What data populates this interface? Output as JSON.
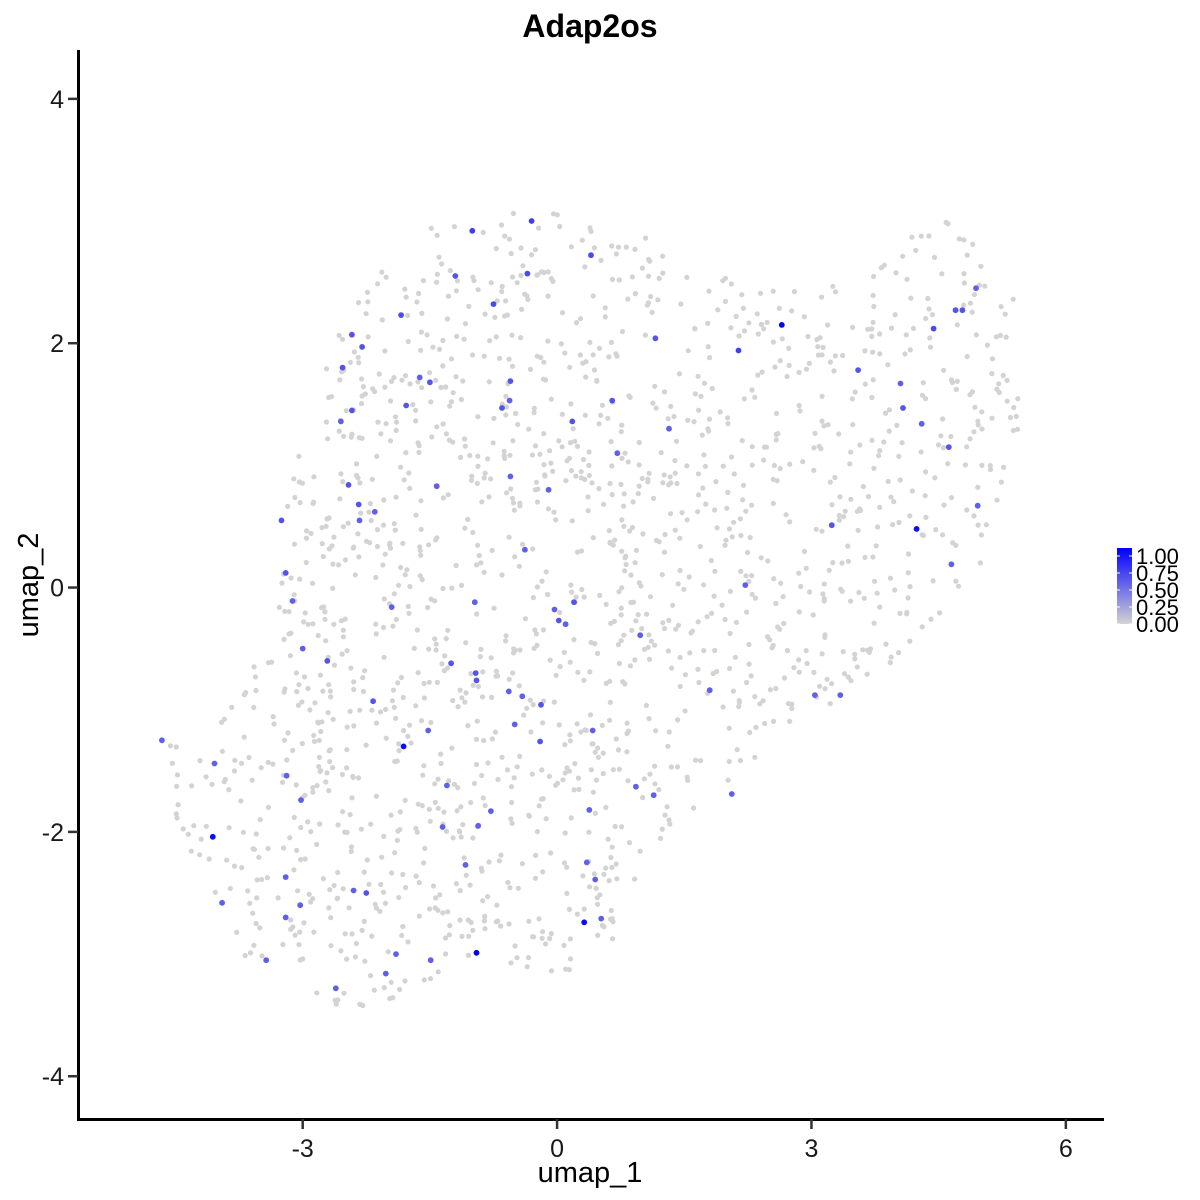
{
  "chart_data": {
    "type": "scatter",
    "title": "Adap2os",
    "xlabel": "umap_1",
    "ylabel": "umap_2",
    "xlim": [
      -5.65,
      6.45
    ],
    "ylim": [
      -4.35,
      4.4
    ],
    "x_ticks": [
      -3,
      0,
      3,
      6
    ],
    "x_tick_labels": [
      "-3",
      "0",
      "3",
      "6"
    ],
    "y_ticks": [
      -4,
      -2,
      0,
      2,
      4
    ],
    "y_tick_labels": [
      "-4",
      "-2",
      "0",
      "2",
      "4"
    ],
    "grid": false,
    "legend": {
      "position": "right",
      "type": "colorbar",
      "labels": [
        "1.00",
        "0.75",
        "0.50",
        "0.25",
        "0.00"
      ],
      "low_color": "#d3d3d3",
      "high_color": "#0000ff"
    },
    "background_cells_color": "#d3d3d3",
    "background_cells_expression": 0,
    "expressing_cells": [
      {
        "x": -1.0,
        "y": 2.92,
        "v": 0.7
      },
      {
        "x": -0.3,
        "y": 3.0,
        "v": 0.7
      },
      {
        "x": 0.4,
        "y": 2.72,
        "v": 0.65
      },
      {
        "x": -1.2,
        "y": 2.55,
        "v": 0.6
      },
      {
        "x": -0.35,
        "y": 2.57,
        "v": 0.65
      },
      {
        "x": -1.84,
        "y": 2.23,
        "v": 0.65
      },
      {
        "x": -0.75,
        "y": 2.32,
        "v": 0.65
      },
      {
        "x": 1.16,
        "y": 2.04,
        "v": 0.6
      },
      {
        "x": 2.65,
        "y": 2.15,
        "v": 1.0
      },
      {
        "x": 2.14,
        "y": 1.94,
        "v": 0.7
      },
      {
        "x": 4.44,
        "y": 2.12,
        "v": 0.65
      },
      {
        "x": 4.7,
        "y": 2.27,
        "v": 0.6
      },
      {
        "x": 4.78,
        "y": 2.27,
        "v": 0.6
      },
      {
        "x": 4.94,
        "y": 2.45,
        "v": 0.55
      },
      {
        "x": -2.42,
        "y": 2.07,
        "v": 0.6
      },
      {
        "x": -2.3,
        "y": 1.97,
        "v": 0.6
      },
      {
        "x": -2.53,
        "y": 1.8,
        "v": 0.6
      },
      {
        "x": -1.62,
        "y": 1.72,
        "v": 0.55
      },
      {
        "x": -1.5,
        "y": 1.68,
        "v": 0.6
      },
      {
        "x": -0.55,
        "y": 1.69,
        "v": 0.6
      },
      {
        "x": -1.78,
        "y": 1.49,
        "v": 0.6
      },
      {
        "x": -0.56,
        "y": 1.53,
        "v": 0.55
      },
      {
        "x": -0.65,
        "y": 1.47,
        "v": 0.6
      },
      {
        "x": 0.65,
        "y": 1.53,
        "v": 0.6
      },
      {
        "x": 0.18,
        "y": 1.36,
        "v": 0.6
      },
      {
        "x": 1.32,
        "y": 1.3,
        "v": 0.55
      },
      {
        "x": 3.55,
        "y": 1.78,
        "v": 0.6
      },
      {
        "x": 4.05,
        "y": 1.67,
        "v": 0.55
      },
      {
        "x": 4.08,
        "y": 1.47,
        "v": 0.6
      },
      {
        "x": 4.3,
        "y": 1.34,
        "v": 0.55
      },
      {
        "x": 4.62,
        "y": 1.15,
        "v": 0.6
      },
      {
        "x": -2.42,
        "y": 1.45,
        "v": 0.6
      },
      {
        "x": -2.55,
        "y": 1.36,
        "v": 0.55
      },
      {
        "x": 0.71,
        "y": 1.1,
        "v": 0.55
      },
      {
        "x": -0.55,
        "y": 0.91,
        "v": 0.55
      },
      {
        "x": -1.42,
        "y": 0.83,
        "v": 0.55
      },
      {
        "x": -0.1,
        "y": 0.8,
        "v": 0.55
      },
      {
        "x": -2.46,
        "y": 0.84,
        "v": 0.6
      },
      {
        "x": -2.34,
        "y": 0.68,
        "v": 0.6
      },
      {
        "x": -2.15,
        "y": 0.62,
        "v": 0.55
      },
      {
        "x": -2.33,
        "y": 0.55,
        "v": 0.55
      },
      {
        "x": -3.25,
        "y": 0.55,
        "v": 0.6
      },
      {
        "x": 3.24,
        "y": 0.51,
        "v": 0.6
      },
      {
        "x": 4.24,
        "y": 0.48,
        "v": 0.95
      },
      {
        "x": 4.96,
        "y": 0.67,
        "v": 0.55
      },
      {
        "x": 4.65,
        "y": 0.19,
        "v": 0.55
      },
      {
        "x": -0.38,
        "y": 0.31,
        "v": 0.55
      },
      {
        "x": -3.2,
        "y": 0.12,
        "v": 0.6
      },
      {
        "x": -3.12,
        "y": -0.11,
        "v": 0.55
      },
      {
        "x": -1.95,
        "y": -0.16,
        "v": 0.55
      },
      {
        "x": 2.22,
        "y": 0.02,
        "v": 0.55
      },
      {
        "x": -0.03,
        "y": -0.18,
        "v": 0.55
      },
      {
        "x": -0.97,
        "y": -0.12,
        "v": 0.55
      },
      {
        "x": 0.2,
        "y": -0.12,
        "v": 0.6
      },
      {
        "x": 0.02,
        "y": -0.27,
        "v": 0.6
      },
      {
        "x": 0.1,
        "y": -0.3,
        "v": 0.55
      },
      {
        "x": 0.98,
        "y": -0.39,
        "v": 0.55
      },
      {
        "x": -3.0,
        "y": -0.5,
        "v": 0.55
      },
      {
        "x": -2.71,
        "y": -0.6,
        "v": 0.6
      },
      {
        "x": -1.25,
        "y": -0.62,
        "v": 0.6
      },
      {
        "x": -0.96,
        "y": -0.7,
        "v": 0.6
      },
      {
        "x": -0.95,
        "y": -0.76,
        "v": 0.6
      },
      {
        "x": -0.57,
        "y": -0.85,
        "v": 0.55
      },
      {
        "x": -0.41,
        "y": -0.89,
        "v": 0.55
      },
      {
        "x": -0.19,
        "y": -0.96,
        "v": 0.6
      },
      {
        "x": 1.8,
        "y": -0.84,
        "v": 0.55
      },
      {
        "x": 3.04,
        "y": -0.88,
        "v": 0.55
      },
      {
        "x": 3.34,
        "y": -0.88,
        "v": 0.55
      },
      {
        "x": -2.17,
        "y": -0.93,
        "v": 0.6
      },
      {
        "x": -1.52,
        "y": -1.17,
        "v": 0.55
      },
      {
        "x": -0.5,
        "y": -1.12,
        "v": 0.55
      },
      {
        "x": 0.42,
        "y": -1.17,
        "v": 0.55
      },
      {
        "x": -1.81,
        "y": -1.3,
        "v": 0.95
      },
      {
        "x": -0.2,
        "y": -1.26,
        "v": 0.6
      },
      {
        "x": -4.66,
        "y": -1.25,
        "v": 0.55
      },
      {
        "x": -4.04,
        "y": -1.44,
        "v": 0.55
      },
      {
        "x": -3.19,
        "y": -1.54,
        "v": 0.55
      },
      {
        "x": -1.3,
        "y": -1.62,
        "v": 0.55
      },
      {
        "x": 0.93,
        "y": -1.63,
        "v": 0.55
      },
      {
        "x": 1.14,
        "y": -1.7,
        "v": 0.55
      },
      {
        "x": 2.06,
        "y": -1.69,
        "v": 0.55
      },
      {
        "x": -3.02,
        "y": -1.74,
        "v": 0.55
      },
      {
        "x": -0.78,
        "y": -1.83,
        "v": 0.55
      },
      {
        "x": 0.38,
        "y": -1.82,
        "v": 0.55
      },
      {
        "x": -4.06,
        "y": -2.04,
        "v": 0.95
      },
      {
        "x": -1.35,
        "y": -1.96,
        "v": 0.55
      },
      {
        "x": -0.93,
        "y": -1.95,
        "v": 0.55
      },
      {
        "x": -1.08,
        "y": -2.27,
        "v": 0.55
      },
      {
        "x": 0.35,
        "y": -2.25,
        "v": 0.55
      },
      {
        "x": 0.45,
        "y": -2.39,
        "v": 0.55
      },
      {
        "x": -3.2,
        "y": -2.37,
        "v": 0.55
      },
      {
        "x": -2.4,
        "y": -2.48,
        "v": 0.55
      },
      {
        "x": -2.25,
        "y": -2.5,
        "v": 0.6
      },
      {
        "x": -3.95,
        "y": -2.58,
        "v": 0.55
      },
      {
        "x": -3.03,
        "y": -2.6,
        "v": 0.55
      },
      {
        "x": -3.2,
        "y": -2.7,
        "v": 0.55
      },
      {
        "x": 0.52,
        "y": -2.71,
        "v": 0.55
      },
      {
        "x": 0.32,
        "y": -2.74,
        "v": 0.95
      },
      {
        "x": -1.9,
        "y": -3.0,
        "v": 0.55
      },
      {
        "x": -0.95,
        "y": -2.99,
        "v": 1.0
      },
      {
        "x": -3.43,
        "y": -3.05,
        "v": 0.55
      },
      {
        "x": -1.49,
        "y": -3.05,
        "v": 0.55
      },
      {
        "x": -2.02,
        "y": -3.16,
        "v": 0.55
      },
      {
        "x": -2.61,
        "y": -3.28,
        "v": 0.55
      }
    ]
  }
}
